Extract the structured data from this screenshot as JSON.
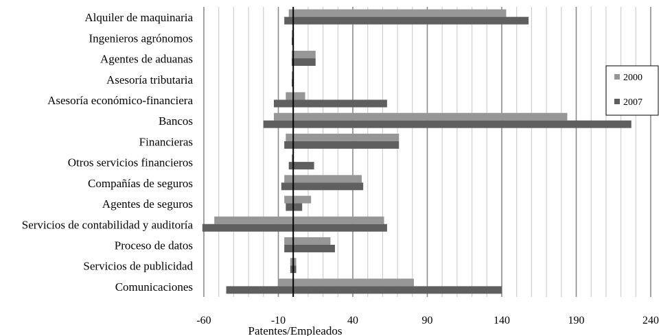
{
  "chart_data": {
    "type": "bar",
    "orientation": "horizontal",
    "categories": [
      "Alquiler de maquinaria",
      "Ingenieros agrónomos",
      "Agentes de aduanas",
      "Asesoría tributaria",
      "Asesoría económico-financiera",
      "Bancos",
      "Financieras",
      "Otros servicios  financieros",
      "Compañías de seguros",
      "Agentes de seguros",
      "Servicios de contabilidad y auditoría",
      "Proceso de datos",
      "Servicios de publicidad",
      "Comunicaciones"
    ],
    "series": [
      {
        "name": "2000",
        "color": "#969696",
        "values": [
          [
            -3,
            143
          ],
          [
            -1,
            0
          ],
          [
            -1,
            15
          ],
          [
            -1,
            0
          ],
          [
            -5,
            8
          ],
          [
            -13,
            184
          ],
          [
            -5,
            71
          ],
          [
            -1,
            0
          ],
          [
            -6,
            46
          ],
          [
            -6,
            12
          ],
          [
            -53,
            61
          ],
          [
            -6,
            25
          ],
          [
            -2,
            2
          ],
          [
            -10,
            81
          ]
        ]
      },
      {
        "name": "2007",
        "color": "#5f5f5f",
        "values": [
          [
            -6,
            158
          ],
          [
            -1,
            0
          ],
          [
            -1,
            15
          ],
          [
            -1,
            0
          ],
          [
            -13,
            63
          ],
          [
            -20,
            227
          ],
          [
            -6,
            71
          ],
          [
            -3,
            14
          ],
          [
            -8,
            47
          ],
          [
            -5,
            6
          ],
          [
            -61,
            63
          ],
          [
            -6,
            28
          ],
          [
            -2,
            2
          ],
          [
            -45,
            140
          ]
        ]
      }
    ],
    "xlabel": "Patentes/Empleados",
    "xlim": [
      -60,
      240
    ],
    "xticks": [
      -60,
      -10,
      40,
      90,
      140,
      190,
      240
    ],
    "zero_line": 0,
    "minor_step": 10,
    "grid": true,
    "legend_position": "right"
  }
}
